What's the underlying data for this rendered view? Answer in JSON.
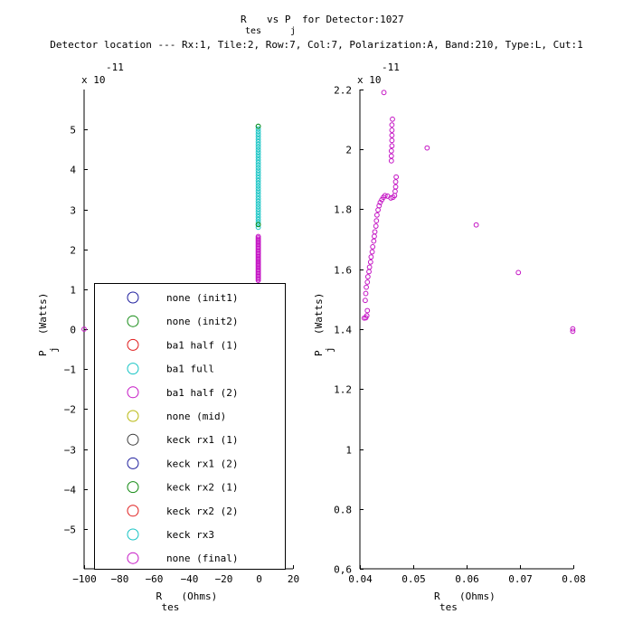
{
  "title": {
    "line1_a": "R",
    "line1_sub_a": "tes",
    "line1_b": "vs P",
    "line1_sub_b": "j",
    "line1_c": "for Detector:1027",
    "line2": "Detector location --- Rx:1, Tile:2, Row:7, Col:7, Polarization:A, Band:210, Type:L, Cut:1"
  },
  "chart_data": [
    {
      "type": "scatter",
      "name": "left-panel",
      "xlabel_main": "R",
      "xlabel_sub": "tes",
      "xlabel_unit": "(Ohms)",
      "ylabel_main": "P",
      "ylabel_sub": "j",
      "ylabel_unit": "(Watts)",
      "exponent_prefix": "x 10",
      "exponent_power": "-11",
      "xlim": [
        -100,
        20
      ],
      "ylim": [
        -6,
        6
      ],
      "xticks": [
        -100,
        -80,
        -60,
        -40,
        -20,
        0,
        20
      ],
      "xtick_labels": [
        "−100",
        "−80",
        "−60",
        "−40",
        "−20",
        "0",
        "20"
      ],
      "yticks": [
        -5,
        -4,
        -3,
        -2,
        -1,
        0,
        1,
        2,
        3,
        4,
        5
      ],
      "ytick_labels": [
        "−5",
        "−4",
        "−3",
        "−2",
        "−1",
        "0",
        "1",
        "2",
        "3",
        "4",
        "5"
      ],
      "legend_placement": "bottom-left",
      "legend": [
        {
          "label": "none (init1)",
          "color": "#1f1f9e"
        },
        {
          "label": "none (init2)",
          "color": "#128a12"
        },
        {
          "label": "ba1 half (1)",
          "color": "#e01c1c"
        },
        {
          "label": "ba1 full",
          "color": "#17c4c4"
        },
        {
          "label": "ba1 half (2)",
          "color": "#c414c4"
        },
        {
          "label": "none (mid)",
          "color": "#b8b80f"
        },
        {
          "label": "keck rx1 (1)",
          "color": "#3a3a3a"
        },
        {
          "label": "keck rx1 (2)",
          "color": "#1f1f9e"
        },
        {
          "label": "keck rx2 (1)",
          "color": "#128a12"
        },
        {
          "label": "keck rx2 (2)",
          "color": "#e01c1c"
        },
        {
          "label": "keck rx3",
          "color": "#17c4c4"
        },
        {
          "label": "none (final)",
          "color": "#c414c4"
        }
      ],
      "series": [
        {
          "label": "ba1 full",
          "color": "#17c4c4",
          "x": 0.05,
          "y_from": 2.55,
          "y_to": 5.08,
          "n": 40
        },
        {
          "label": "none (init2)",
          "color": "#128a12",
          "points": [
            [
              0.05,
              5.08
            ],
            [
              0.05,
              2.62
            ]
          ]
        },
        {
          "label": "ba1 half (2)",
          "color": "#c414c4",
          "x": 0.05,
          "y_from": 1.22,
          "y_to": 2.32,
          "n": 34
        },
        {
          "label": "ba1 half (2) outlier",
          "color": "#c414c4",
          "points": [
            [
              -100,
              0.0
            ]
          ]
        }
      ]
    },
    {
      "type": "scatter",
      "name": "right-panel",
      "xlabel_main": "R",
      "xlabel_sub": "tes",
      "xlabel_unit": "(Ohms)",
      "ylabel_main": "P",
      "ylabel_sub": "j",
      "ylabel_unit": "(Watts)",
      "exponent_prefix": "x 10",
      "exponent_power": "-11",
      "xlim": [
        0.04,
        0.08
      ],
      "ylim": [
        0.6,
        2.2
      ],
      "xticks": [
        0.04,
        0.05,
        0.06,
        0.07,
        0.08
      ],
      "xtick_labels": [
        "0.04",
        "0.05",
        "0.06",
        "0.07",
        "0.08"
      ],
      "yticks": [
        0.6,
        0.8,
        1.0,
        1.2,
        1.4,
        1.6,
        1.8,
        2.0,
        2.2
      ],
      "ytick_labels": [
        "0,6",
        "0.8",
        "1",
        "1.2",
        "1.4",
        "1.6",
        "1.8",
        "2",
        "2.2"
      ],
      "series": [
        {
          "label": "ba1 half (2)",
          "color": "#c414c4",
          "points": [
            [
              0.0408,
              1.437
            ],
            [
              0.0411,
              1.438
            ],
            [
              0.0413,
              1.445
            ],
            [
              0.0414,
              1.462
            ],
            [
              0.041,
              1.496
            ],
            [
              0.0411,
              1.519
            ],
            [
              0.0412,
              1.54
            ],
            [
              0.0414,
              1.557
            ],
            [
              0.0415,
              1.575
            ],
            [
              0.0417,
              1.592
            ],
            [
              0.0418,
              1.607
            ],
            [
              0.042,
              1.624
            ],
            [
              0.0421,
              1.641
            ],
            [
              0.0423,
              1.658
            ],
            [
              0.0424,
              1.675
            ],
            [
              0.0426,
              1.694
            ],
            [
              0.0427,
              1.71
            ],
            [
              0.0428,
              1.725
            ],
            [
              0.043,
              1.744
            ],
            [
              0.0431,
              1.762
            ],
            [
              0.0432,
              1.781
            ],
            [
              0.0434,
              1.798
            ],
            [
              0.0436,
              1.812
            ],
            [
              0.0438,
              1.823
            ],
            [
              0.0441,
              1.832
            ],
            [
              0.0444,
              1.84
            ],
            [
              0.0447,
              1.846
            ],
            [
              0.0452,
              1.844
            ],
            [
              0.0458,
              1.838
            ],
            [
              0.0462,
              1.84
            ],
            [
              0.0465,
              1.846
            ],
            [
              0.0466,
              1.86
            ],
            [
              0.0467,
              1.875
            ],
            [
              0.0467,
              1.892
            ],
            [
              0.0468,
              1.908
            ],
            [
              0.0459,
              1.962
            ],
            [
              0.0459,
              1.978
            ],
            [
              0.0459,
              1.995
            ],
            [
              0.046,
              2.012
            ],
            [
              0.046,
              2.03
            ],
            [
              0.046,
              2.047
            ],
            [
              0.046,
              2.064
            ],
            [
              0.046,
              2.082
            ],
            [
              0.0461,
              2.101
            ],
            [
              0.0445,
              2.19
            ],
            [
              0.0526,
              2.005
            ],
            [
              0.0618,
              1.748
            ],
            [
              0.0697,
              1.589
            ],
            [
              0.0799,
              1.401
            ],
            [
              0.0799,
              1.393
            ]
          ]
        }
      ]
    }
  ]
}
